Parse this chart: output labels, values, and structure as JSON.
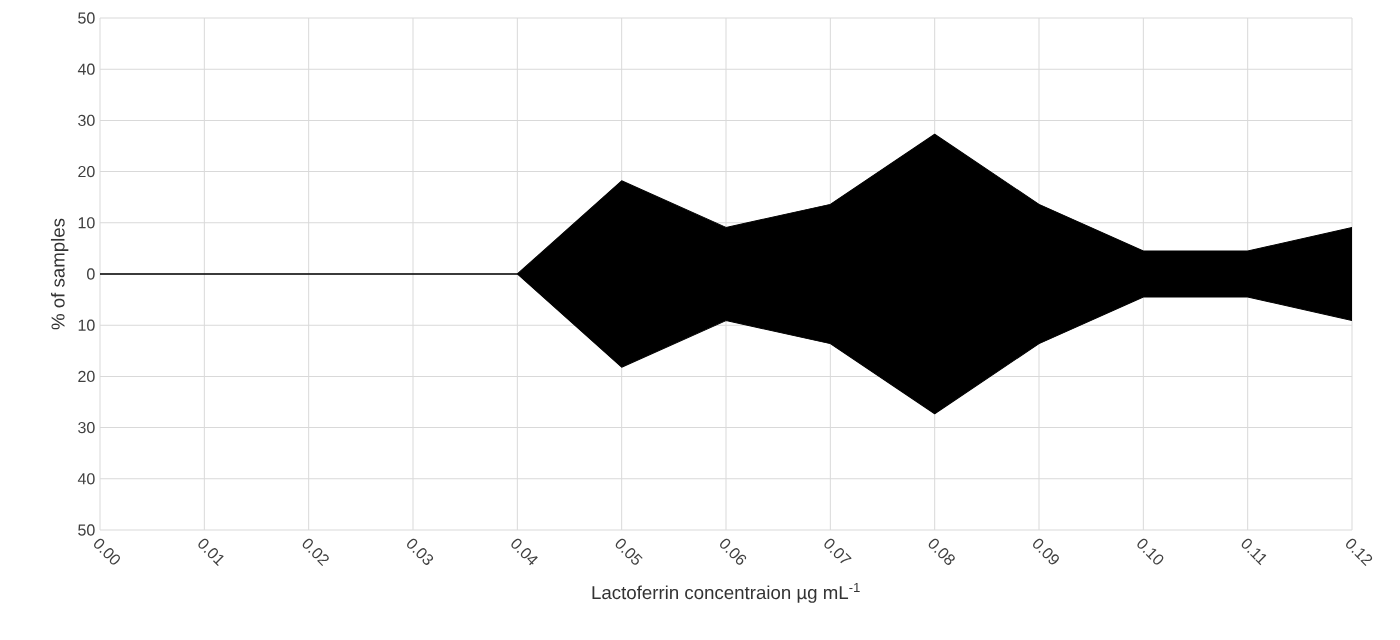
{
  "chart_data": {
    "type": "area",
    "xlabel": "Lactoferrin concentraion µg mL$^{-1}$",
    "ylabel": "% of samples",
    "x": [
      0,
      0.01,
      0.02,
      0.03,
      0.04,
      0.05,
      0.06,
      0.07,
      0.08,
      0.09,
      0.1,
      0.11,
      0.12
    ],
    "series": [
      {
        "color": "#000000",
        "values": [
          0,
          0,
          0,
          0,
          0,
          18.2,
          9.1,
          13.6,
          27.3,
          13.6,
          4.5,
          4.5,
          9.1
        ]
      },
      {
        "color": "#000000",
        "values": [
          0,
          0,
          0,
          0,
          0,
          -18.2,
          -9.1,
          -13.6,
          -27.3,
          -13.6,
          -4.5,
          -4.5,
          -9.1
        ]
      }
    ],
    "xlim": [
      0,
      0.12
    ],
    "xticks": [
      {
        "value": 0,
        "label": "0.00"
      },
      {
        "value": 0.01,
        "label": "0.01"
      },
      {
        "value": 0.02,
        "label": "0.02"
      },
      {
        "value": 0.03,
        "label": "0.03"
      },
      {
        "value": 0.04,
        "label": "0.04"
      },
      {
        "value": 0.05,
        "label": "0.05"
      },
      {
        "value": 0.06,
        "label": "0.06"
      },
      {
        "value": 0.07,
        "label": "0.07"
      },
      {
        "value": 0.08,
        "label": "0.08"
      },
      {
        "value": 0.09,
        "label": "0.09"
      },
      {
        "value": 0.1,
        "label": "0.10"
      },
      {
        "value": 0.11,
        "label": "0.11"
      },
      {
        "value": 0.12,
        "label": "0.12"
      }
    ],
    "ylim": [
      -50,
      50
    ],
    "yticks": [
      {
        "value": -50,
        "label": "50"
      },
      {
        "value": -40,
        "label": "40"
      },
      {
        "value": -30,
        "label": "30"
      },
      {
        "value": -20,
        "label": "20"
      },
      {
        "value": -10,
        "label": "10"
      },
      0,
      10,
      20,
      30,
      40,
      50
    ],
    "grid": true
  }
}
